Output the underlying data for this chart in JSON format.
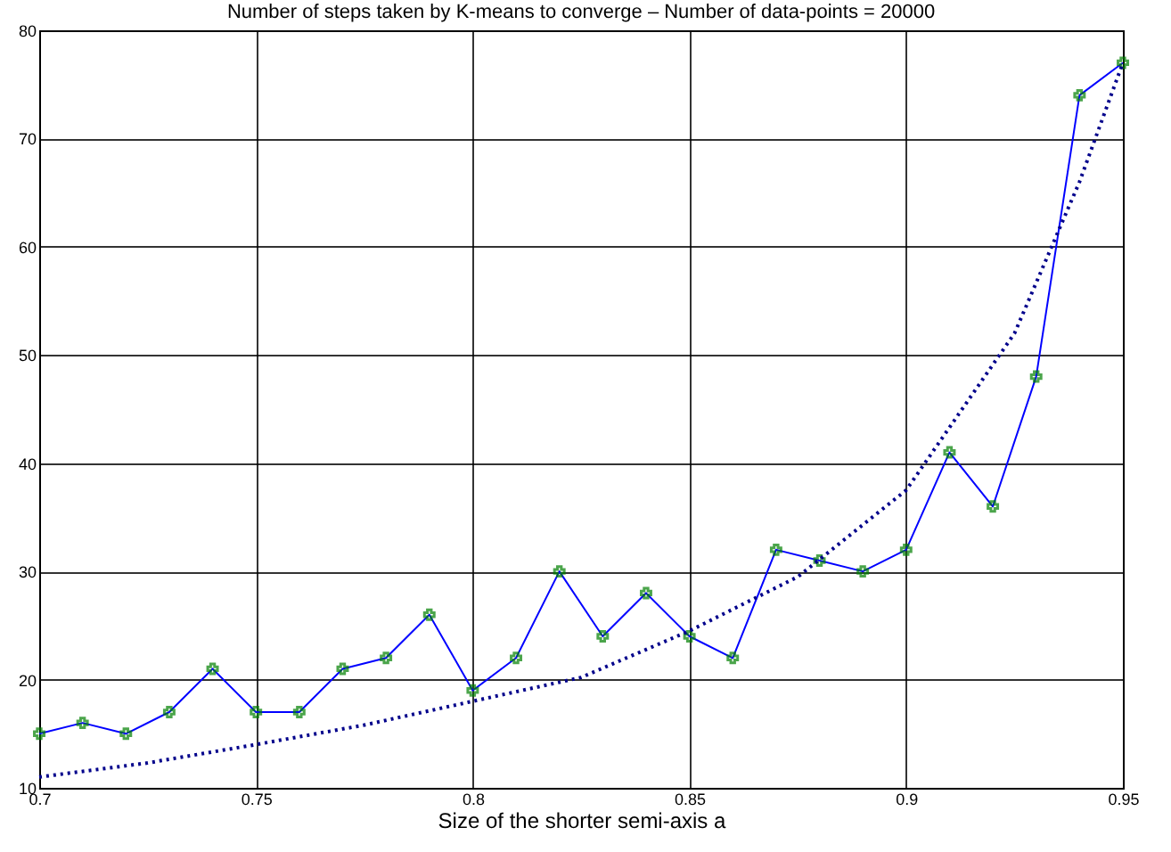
{
  "chart_data": {
    "type": "line",
    "title": "Number of steps taken by K-means to converge – Number of data-points = 20000",
    "xlabel": "Size of the shorter semi-axis a",
    "x": [
      0.7,
      0.71,
      0.72,
      0.73,
      0.74,
      0.75,
      0.76,
      0.77,
      0.78,
      0.79,
      0.8,
      0.81,
      0.82,
      0.83,
      0.84,
      0.85,
      0.86,
      0.87,
      0.88,
      0.89,
      0.9,
      0.91,
      0.92,
      0.93,
      0.94,
      0.95
    ],
    "series": [
      {
        "color": "#0000ff",
        "marker": "none",
        "line_style": "solid",
        "values": [
          15,
          16,
          15,
          17,
          21,
          17,
          17,
          21,
          22,
          26,
          19,
          22,
          30,
          24,
          28,
          24,
          22,
          32,
          31,
          30,
          32,
          41,
          36,
          48,
          74,
          77
        ]
      },
      {
        "type": "scatter",
        "color": "#008000",
        "marker": "cross",
        "values": [
          15,
          16,
          15,
          17,
          21,
          17,
          17,
          21,
          22,
          26,
          19,
          22,
          30,
          24,
          28,
          24,
          22,
          32,
          31,
          30,
          32,
          41,
          36,
          48,
          74,
          77
        ]
      },
      {
        "color": "#00008b",
        "marker": "none",
        "line_style": "dotted",
        "x": [
          0.7,
          0.725,
          0.75,
          0.775,
          0.8,
          0.825,
          0.85,
          0.875,
          0.9,
          0.925,
          0.94,
          0.95
        ],
        "values": [
          11,
          12.3,
          14,
          15.8,
          18,
          20.2,
          24.5,
          29.5,
          37.5,
          52,
          66,
          77
        ]
      }
    ],
    "xlim": [
      0.7,
      0.95
    ],
    "xticks": [
      0.7,
      0.75,
      0.8,
      0.85,
      0.9,
      0.95
    ],
    "ylim": [
      10,
      80
    ],
    "yticks": [
      10,
      20,
      30,
      40,
      50,
      60,
      70,
      80
    ],
    "grid": true
  }
}
